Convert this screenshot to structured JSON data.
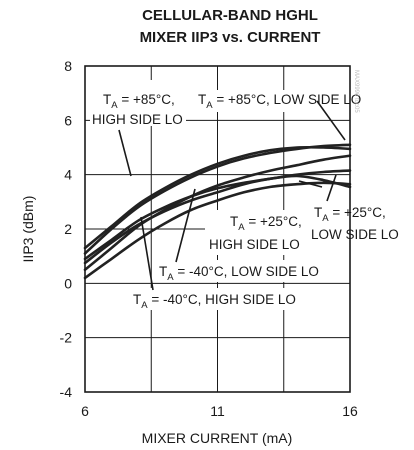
{
  "chart_data": {
    "type": "line",
    "title": [
      "CELLULAR-BAND HGHL",
      "MIXER IIP3 vs. CURRENT"
    ],
    "xlabel": "MIXER CURRENT (mA)",
    "ylabel": "IIP3 (dBm)",
    "xlim": [
      6,
      16
    ],
    "ylim": [
      -4,
      8
    ],
    "x_ticks": [
      "6",
      "11",
      "16"
    ],
    "y_ticks": [
      "8",
      "6",
      "4",
      "2",
      "0",
      "-2",
      "-4"
    ],
    "grid": true,
    "part_number": "MAX9990 toc05",
    "series": [
      {
        "name": "TA = +85°C, HIGH SIDE LO",
        "x": [
          6,
          7,
          8,
          9,
          10,
          11,
          12,
          13,
          14,
          15,
          16
        ],
        "y": [
          1.3,
          2.1,
          2.9,
          3.5,
          4.0,
          4.4,
          4.7,
          4.9,
          5.0,
          5.0,
          4.95
        ]
      },
      {
        "name": "TA = +85°C, LOW SIDE LO",
        "x": [
          6,
          7,
          8,
          9,
          10,
          11,
          12,
          13,
          14,
          15,
          16
        ],
        "y": [
          1.1,
          2.0,
          2.8,
          3.4,
          3.9,
          4.3,
          4.6,
          4.8,
          4.95,
          5.05,
          5.1
        ]
      },
      {
        "name": "TA = +25°C, HIGH SIDE LO",
        "x": [
          6,
          7,
          8,
          9,
          10,
          11,
          12,
          13,
          14,
          15,
          16
        ],
        "y": [
          0.9,
          1.6,
          2.3,
          2.8,
          3.2,
          3.5,
          3.7,
          3.85,
          4.0,
          4.1,
          4.15
        ]
      },
      {
        "name": "TA = +25°C, LOW SIDE LO",
        "x": [
          6,
          7,
          8,
          9,
          10,
          11,
          12,
          13,
          14,
          15,
          16
        ],
        "y": [
          0.75,
          1.5,
          2.15,
          2.65,
          3.05,
          3.35,
          3.65,
          3.85,
          3.95,
          3.8,
          3.55
        ]
      },
      {
        "name": "TA = -40°C, LOW SIDE LO",
        "x": [
          6,
          7,
          8,
          9,
          10,
          11,
          12,
          13,
          14,
          15,
          16
        ],
        "y": [
          0.5,
          1.3,
          2.1,
          2.7,
          3.2,
          3.6,
          3.9,
          4.15,
          4.35,
          4.55,
          4.7
        ]
      },
      {
        "name": "TA = -40°C, HIGH SIDE LO",
        "x": [
          6,
          7,
          8,
          9,
          10,
          11,
          12,
          13,
          14,
          15,
          16
        ],
        "y": [
          0.2,
          0.9,
          1.6,
          2.2,
          2.7,
          3.05,
          3.35,
          3.55,
          3.65,
          3.7,
          3.65
        ]
      }
    ],
    "annotations": [
      {
        "lines": [
          [
            "T",
            "A",
            " = +85°C,"
          ],
          [
            "HIGH SIDE LO"
          ]
        ]
      },
      {
        "lines": [
          [
            "T",
            "A",
            " = +85°C, LOW SIDE LO"
          ]
        ]
      },
      {
        "lines": [
          [
            "T",
            "A",
            " = +25°C,"
          ],
          [
            "HIGH SIDE LO"
          ]
        ]
      },
      {
        "lines": [
          [
            "T",
            "A",
            " = +25°C,"
          ],
          [
            "LOW SIDE LO"
          ]
        ]
      },
      {
        "lines": [
          [
            "T",
            "A",
            " = -40°C, LOW SIDE LO"
          ]
        ]
      },
      {
        "lines": [
          [
            "T",
            "A",
            " = -40°C, HIGH SIDE LO"
          ]
        ]
      }
    ]
  }
}
